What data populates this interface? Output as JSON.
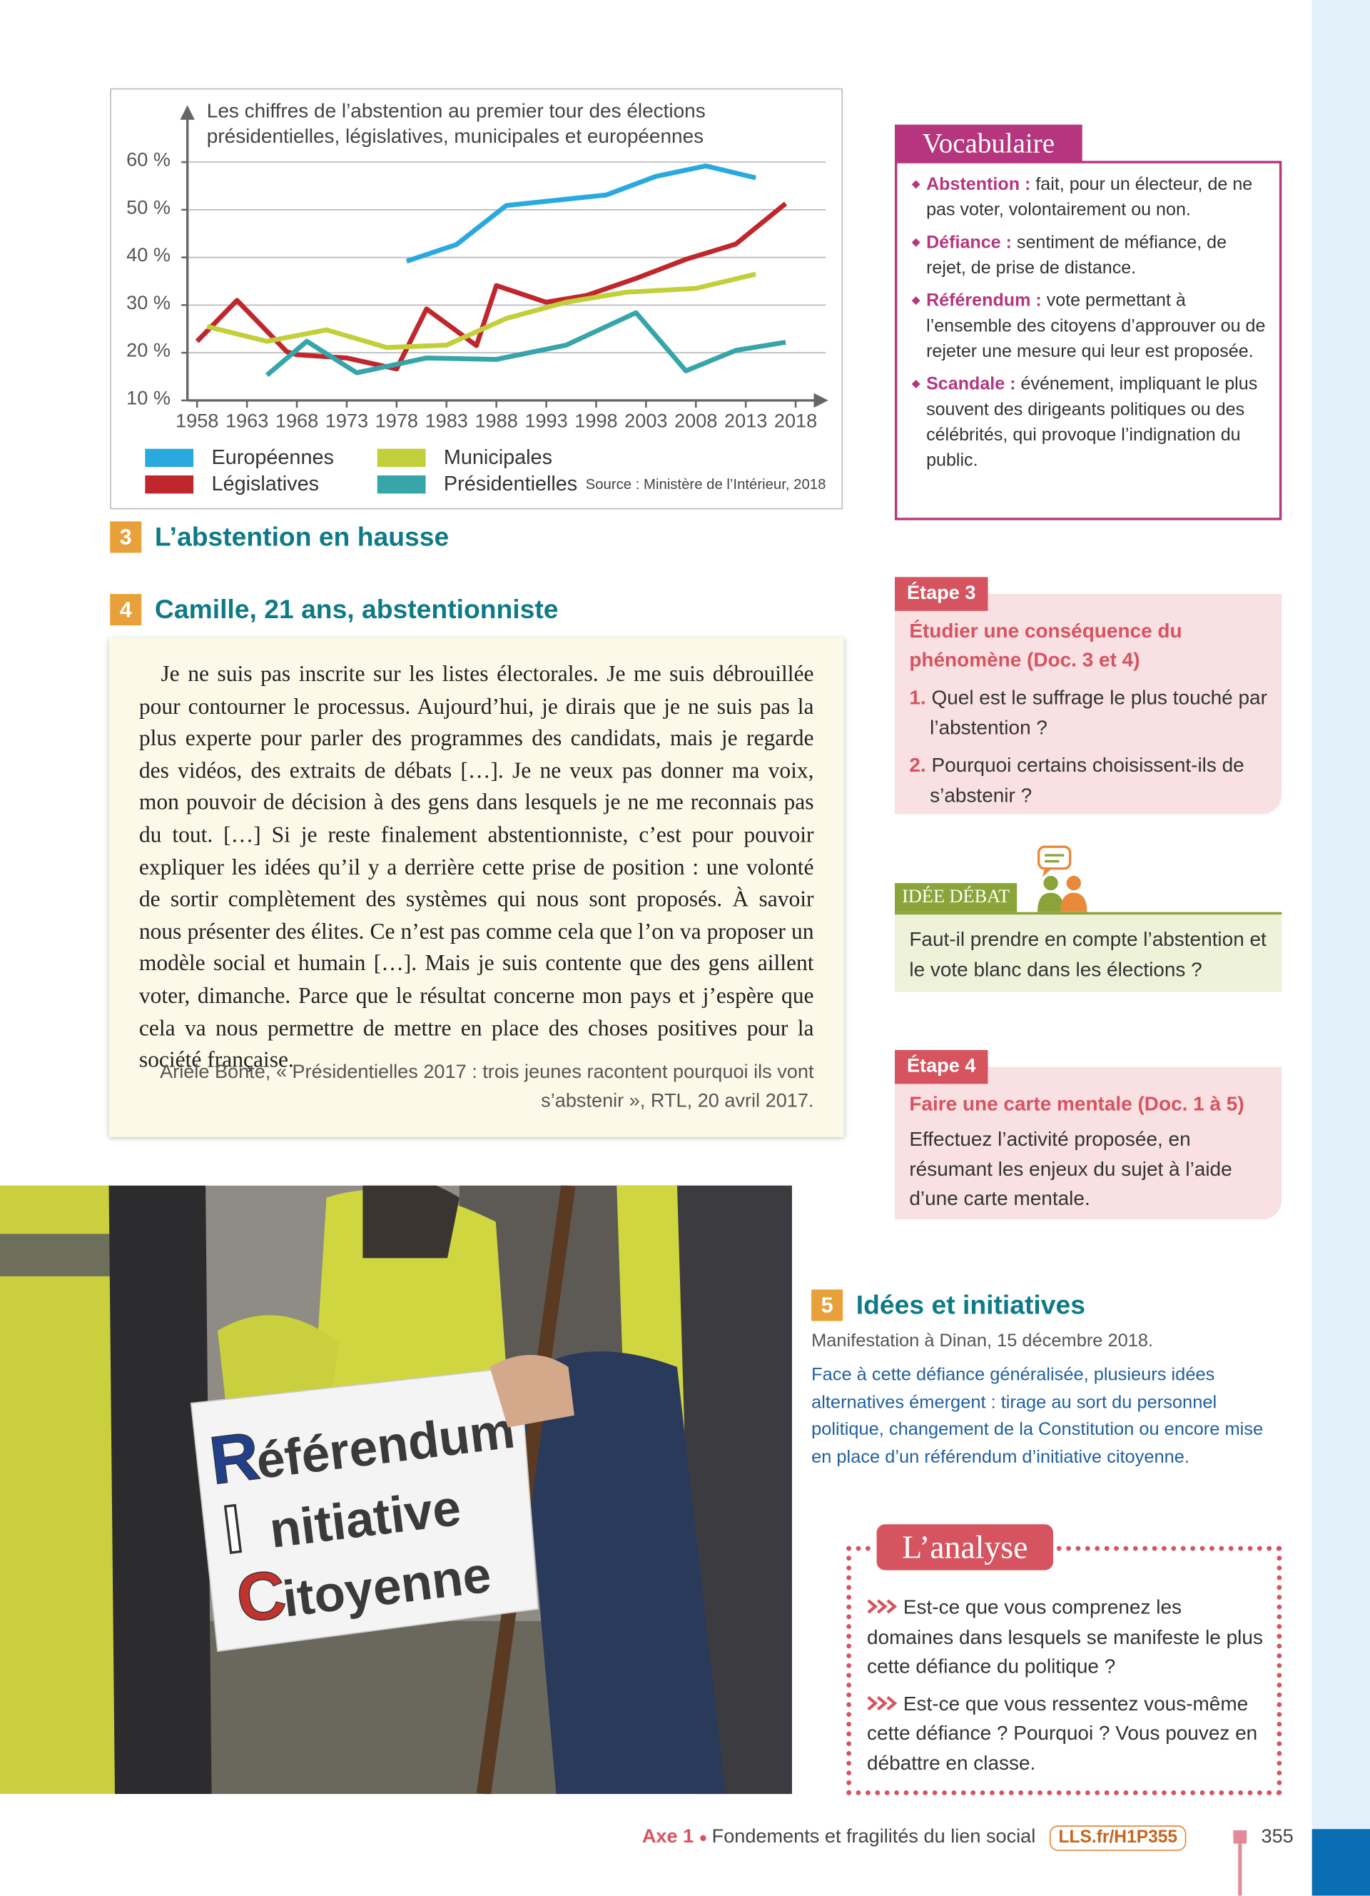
{
  "chart_data": {
    "type": "line",
    "title": "Les chiffres de l’abstention au premier tour des élections présidentielles, législatives, municipales et européennes",
    "source": "Source : Ministère de l’Intérieur, 2018",
    "xlim": [
      1958,
      2018
    ],
    "xticks": [
      1958,
      1963,
      1968,
      1973,
      1978,
      1983,
      1988,
      1993,
      1998,
      2003,
      2008,
      2013,
      2018
    ],
    "ylim": [
      10,
      60
    ],
    "yticks": [
      {
        "value": 10,
        "label": "10 %"
      },
      {
        "value": 20,
        "label": "20 %"
      },
      {
        "value": 30,
        "label": "30 %"
      },
      {
        "value": 40,
        "label": "40 %"
      },
      {
        "value": 50,
        "label": "50 %"
      },
      {
        "value": 60,
        "label": "60 %"
      }
    ],
    "grid": true,
    "series": [
      {
        "name": "Européennes",
        "color": "#29a9e0",
        "x": [
          1979,
          1984,
          1989,
          1994,
          1999,
          2004,
          2009,
          2014
        ],
        "values": [
          39.2,
          42.7,
          50.9,
          52,
          53.1,
          57,
          59.2,
          56.7
        ]
      },
      {
        "name": "Législatives",
        "color": "#c0272d",
        "x": [
          1958,
          1962,
          1967,
          1968,
          1973,
          1978,
          1981,
          1986,
          1988,
          1993,
          1997,
          2002,
          2007,
          2012,
          2017
        ],
        "values": [
          22.4,
          31,
          20.2,
          19.6,
          18.9,
          16.6,
          29.2,
          21.5,
          34.1,
          30.6,
          32,
          35.6,
          39.6,
          42.8,
          51.3
        ]
      },
      {
        "name": "Municipales",
        "color": "#c2cf3a",
        "x": [
          1959,
          1965,
          1971,
          1977,
          1983,
          1989,
          1995,
          2001,
          2008,
          2014
        ],
        "values": [
          25.5,
          22.4,
          24.8,
          21.1,
          21.6,
          27.2,
          30.6,
          32.7,
          33.5,
          36.5
        ]
      },
      {
        "name": "Présidentielles",
        "color": "#35a5a9",
        "x": [
          1965,
          1969,
          1974,
          1981,
          1988,
          1995,
          2002,
          2007,
          2012,
          2017
        ],
        "values": [
          15.3,
          22.4,
          15.8,
          18.9,
          18.6,
          21.6,
          28.4,
          16.2,
          20.5,
          22.2
        ]
      }
    ]
  },
  "doc3": {
    "number": "3",
    "title": "L’abstention en hausse"
  },
  "doc4": {
    "number": "4",
    "title": "Camille, 21 ans, abstentionniste",
    "quote": "Je ne suis pas inscrite sur les listes électorales. Je me suis débrouillée pour contourner le processus. Aujourd’hui, je dirais que je ne suis pas la plus experte pour parler des programmes des candidats, mais je regarde des vidéos, des extraits de débats […]. Je ne veux pas donner ma voix, mon pouvoir de décision à des gens dans lesquels je ne me reconnais pas du tout. […] Si je reste finalement abstentionniste, c’est pour pouvoir expliquer les idées qu’il y a derrière cette prise de position : une volonté de sortir complètement des systèmes qui nous sont proposés. À savoir nous présenter des élites. Ce n’est pas comme cela que l’on va proposer un modèle social et humain […]. Mais je suis contente que des gens aillent voter, dimanche. Parce que le résultat concerne mon pays et j’espère que cela va nous permettre de mettre en place des choses positives pour la société française.",
    "source": "Arièle Bonte, « Présidentielles 2017 : trois jeunes racontent pourquoi ils vont s’abstenir », RTL, 20 avril 2017."
  },
  "photo": {
    "sign": [
      {
        "initial": "R",
        "rest": "éférendum"
      },
      {
        "initial": "I",
        "rest": "nitiative"
      },
      {
        "initial": "C",
        "rest": "itoyenne"
      }
    ]
  },
  "doc5": {
    "number": "5",
    "title": "Idées et initiatives",
    "caption": "Manifestation à Dinan, 15 décembre 2018.",
    "text": "Face à cette défiance généralisée, plusieurs idées alternatives émergent : tirage au sort du personnel politique, changement de la Constitution ou encore mise en place d’un référendum d’initiative citoyenne."
  },
  "vocabulaire": {
    "title": "Vocabulaire",
    "items": [
      {
        "term": "Abstention :",
        "definition": "fait, pour un électeur, de ne pas voter, volontairement ou non."
      },
      {
        "term": "Défiance :",
        "definition": "sentiment de méfiance, de rejet, de prise de distance."
      },
      {
        "term": "Référendum :",
        "definition": "vote permettant à l’ensemble des citoyens d’approuver ou de rejeter une mesure qui leur est proposée."
      },
      {
        "term": "Scandale :",
        "definition": "événement, impliquant le plus souvent des dirigeants politiques ou des célébrités, qui provoque l’indignation du public."
      }
    ]
  },
  "etape3": {
    "label": "Étape 3",
    "subtitle": "Étudier une conséquence du phénomène (Doc. 3 et 4)",
    "questions": [
      {
        "number": "1.",
        "text": "Quel est le suffrage le plus touché par l’abstention ?"
      },
      {
        "number": "2.",
        "text": "Pourquoi certains choisissent-ils de s’abstenir ?"
      }
    ]
  },
  "idee_debat": {
    "label": "IDÉE DÉBAT",
    "text": "Faut-il prendre en compte l’abstention et le vote blanc dans les élections ?"
  },
  "etape4": {
    "label": "Étape 4",
    "subtitle": "Faire une carte mentale (Doc. 1 à 5)",
    "text": "Effectuez l’activité proposée, en résumant les enjeux du sujet à l’aide d’une carte mentale."
  },
  "analyse": {
    "title": "L’analyse",
    "items": [
      "Est-ce que vous comprenez les domaines dans lesquels se manifeste le plus cette défiance du politique ?",
      "Est-ce que vous ressentez vous-même cette défiance ? Pourquoi ? Vous pouvez en débattre en classe."
    ]
  },
  "footer": {
    "axe": "Axe 1",
    "theme": "Fondements et fragilités du lien social",
    "link": "LLS.fr/H1P355",
    "page": "355"
  }
}
